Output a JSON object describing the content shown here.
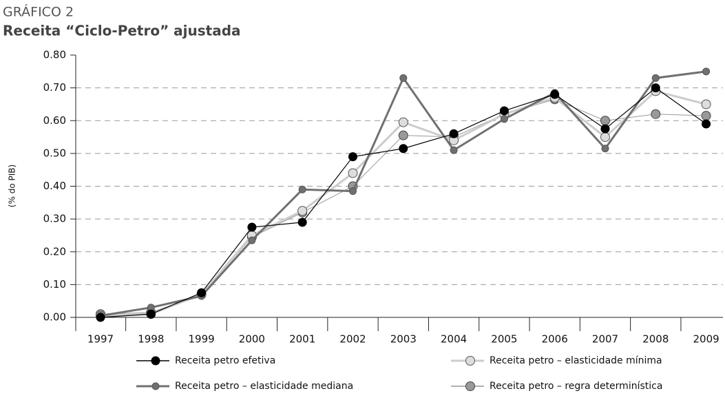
{
  "chart_data": {
    "type": "line",
    "kicker": "GRÁFICO 2",
    "title": "Receita “Ciclo-Petro” ajustada",
    "y_label": "(% do PIB)",
    "categories": [
      "1997",
      "1998",
      "1999",
      "2000",
      "2001",
      "2002",
      "2003",
      "2004",
      "2005",
      "2006",
      "2007",
      "2008",
      "2009"
    ],
    "series": [
      {
        "name": "Receita petro efetiva",
        "color": "#000000",
        "values": [
          0.0,
          0.01,
          0.075,
          0.275,
          0.29,
          0.49,
          0.515,
          0.56,
          0.63,
          0.68,
          0.575,
          0.7,
          0.59
        ]
      },
      {
        "name": "Receita petro – elasticidade mínima",
        "color": "#cccccc",
        "values": [
          0.005,
          0.01,
          0.07,
          0.25,
          0.325,
          0.44,
          0.595,
          0.54,
          0.62,
          0.67,
          0.55,
          0.69,
          0.65
        ]
      },
      {
        "name": "Receita petro – elasticidade mediana",
        "color": "#707070",
        "values": [
          0.005,
          0.03,
          0.065,
          0.235,
          0.39,
          0.385,
          0.73,
          0.51,
          0.605,
          0.685,
          0.515,
          0.73,
          0.75
        ]
      },
      {
        "name": "Receita petro – regra determinística",
        "color": "#999999",
        "values": [
          0.01,
          0.015,
          0.07,
          0.245,
          0.32,
          0.4,
          0.555,
          0.55,
          0.62,
          0.665,
          0.6,
          0.62,
          0.615
        ]
      }
    ],
    "ylim": [
      0,
      0.8
    ],
    "yticks": [
      {
        "value": 0,
        "label": "0.00"
      },
      {
        "value": 0.1,
        "label": "0.10"
      },
      {
        "value": 0.2,
        "label": "0.20"
      },
      {
        "value": 0.3,
        "label": "0.30"
      },
      {
        "value": 0.4,
        "label": "0.40"
      },
      {
        "value": 0.5,
        "label": "0.50"
      },
      {
        "value": 0.6,
        "label": "0.60"
      },
      {
        "value": 0.7,
        "label": "0.70"
      },
      {
        "value": 0.8,
        "label": "0.80"
      }
    ],
    "grid": true
  }
}
